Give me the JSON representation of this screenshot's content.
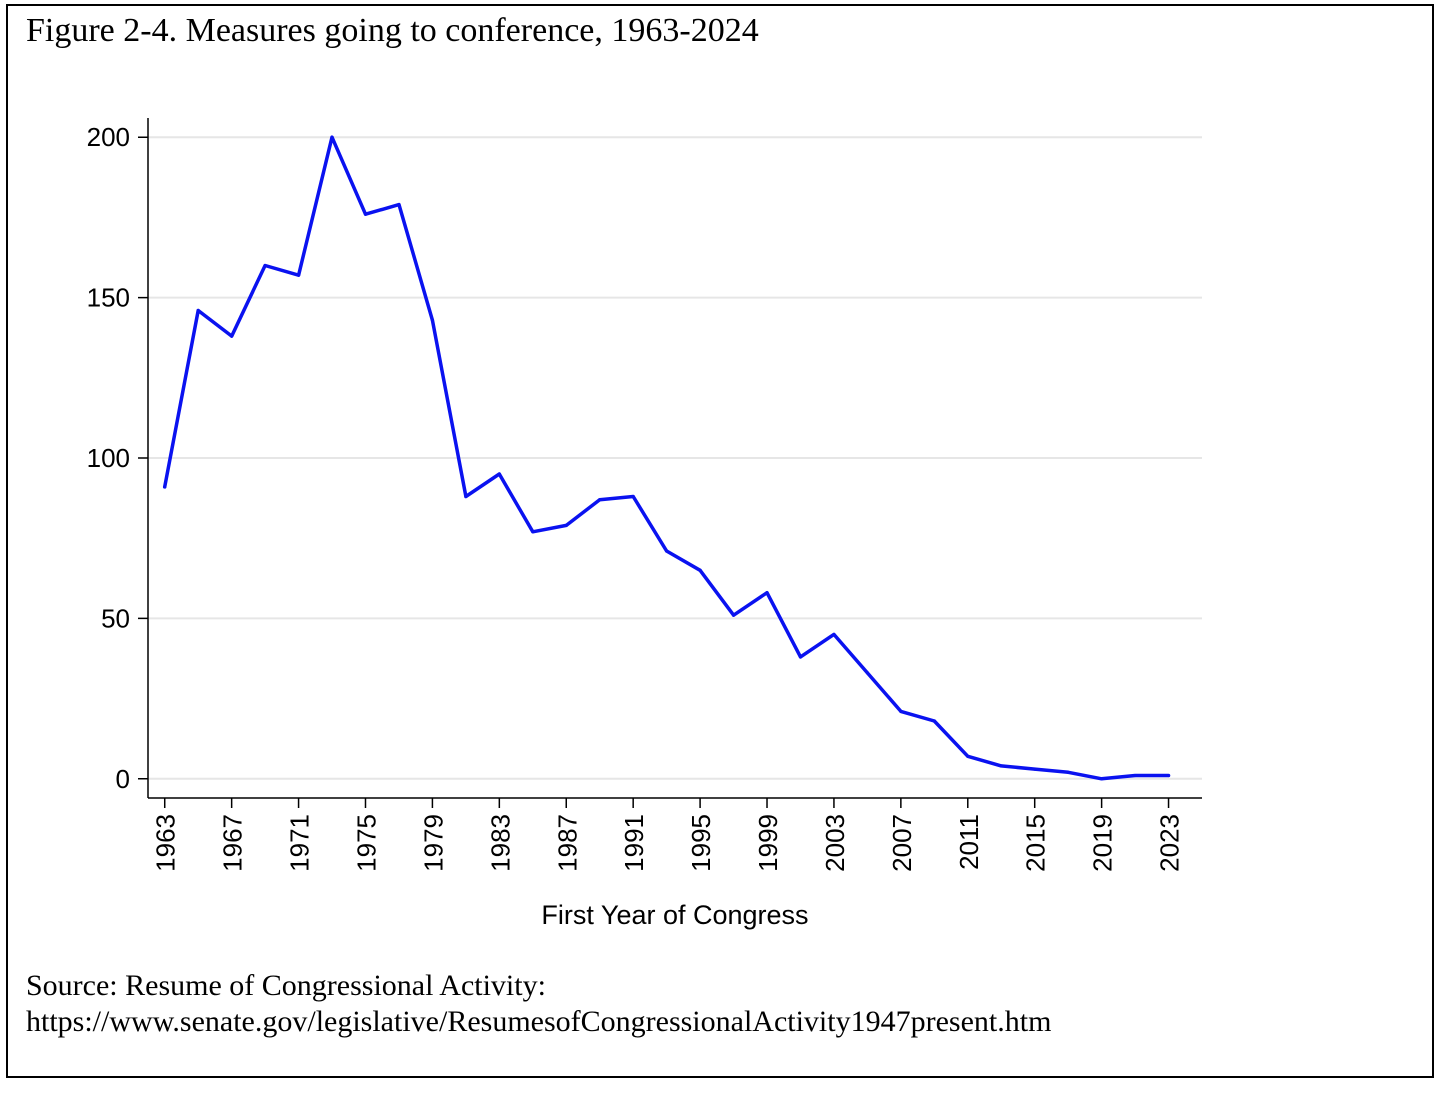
{
  "figure": {
    "title": "Figure 2-4. Measures going to conference, 1963-2024",
    "source_line1": "Source: Resume of Congressional Activity:",
    "source_line2": "https://www.senate.gov/legislative/ResumesofCongressionalActivity1947present.htm"
  },
  "chart_data": {
    "type": "line",
    "title": "Figure 2-4. Measures going to conference, 1963-2024",
    "xlabel": "First Year of Congress",
    "ylabel": "",
    "xlim": [
      1962,
      2025
    ],
    "ylim": [
      -6,
      206
    ],
    "x_ticks": [
      1963,
      1967,
      1971,
      1975,
      1979,
      1983,
      1987,
      1991,
      1995,
      1999,
      2003,
      2007,
      2011,
      2015,
      2019,
      2023
    ],
    "y_ticks": [
      0,
      50,
      100,
      150,
      200
    ],
    "grid": true,
    "legend": "none",
    "line_color": "#0a12f0",
    "series": [
      {
        "x": [
          1963,
          1965,
          1967,
          1969,
          1971,
          1973,
          1975,
          1977,
          1979,
          1981,
          1983,
          1985,
          1987,
          1989,
          1991,
          1993,
          1995,
          1997,
          1999,
          2001,
          2003,
          2005,
          2007,
          2009,
          2011,
          2013,
          2015,
          2017,
          2019,
          2021,
          2023
        ],
        "values": [
          91,
          146,
          138,
          160,
          157,
          200,
          176,
          179,
          143,
          88,
          95,
          77,
          79,
          87,
          88,
          71,
          65,
          51,
          58,
          38,
          45,
          33,
          21,
          18,
          7,
          4,
          3,
          2,
          0,
          1,
          1
        ]
      }
    ]
  }
}
